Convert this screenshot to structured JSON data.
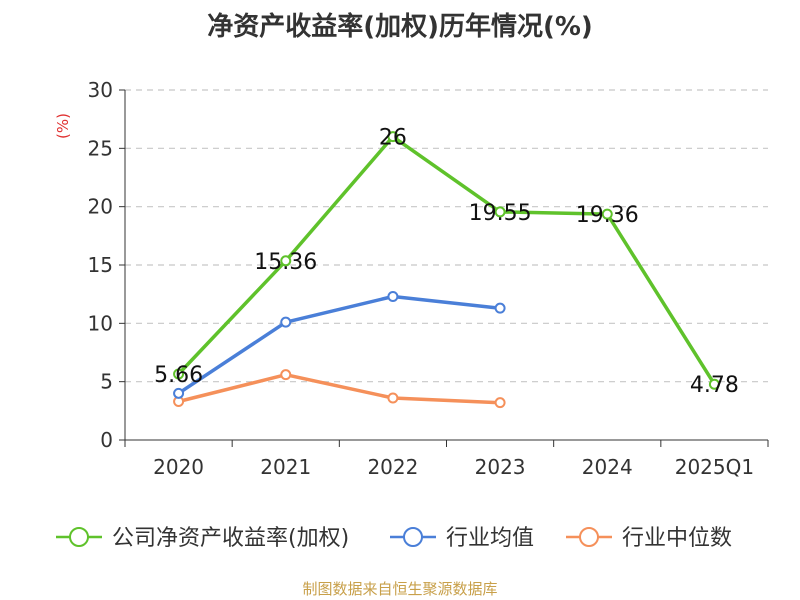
{
  "chart_data": {
    "type": "line",
    "title": "净资产收益率(加权)历年情况(%)",
    "ylabel": "(%)",
    "ylim": [
      0,
      30
    ],
    "yticks": [
      0,
      5,
      10,
      15,
      20,
      25,
      30
    ],
    "categories": [
      "2020",
      "2021",
      "2022",
      "2023",
      "2024",
      "2025Q1"
    ],
    "grid": true,
    "legend_position": "bottom",
    "series": [
      {
        "name": "公司净资产收益率(加权)",
        "color": "#5fc22b",
        "values": [
          5.66,
          15.36,
          26,
          19.55,
          19.36,
          4.78
        ],
        "labels": [
          "5.66",
          "15.36",
          "26",
          "19.55",
          "19.36",
          "4.78"
        ],
        "show_labels": true
      },
      {
        "name": "行业均值",
        "color": "#4a7fd8",
        "values": [
          4.0,
          10.1,
          12.3,
          11.3,
          null,
          null
        ],
        "show_labels": false
      },
      {
        "name": "行业中位数",
        "color": "#f5905a",
        "values": [
          3.3,
          5.6,
          3.6,
          3.2,
          null,
          null
        ],
        "show_labels": false
      }
    ]
  },
  "source": "制图数据来自恒生聚源数据库",
  "colors": {
    "axis": "#333333",
    "grid": "#c8c8c8",
    "ylabel": "#e03030"
  }
}
